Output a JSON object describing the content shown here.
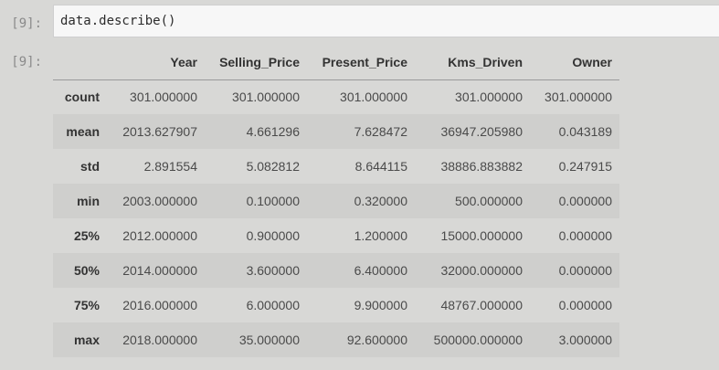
{
  "input": {
    "prompt": "[9]:",
    "code": "data.describe()"
  },
  "output": {
    "prompt": "[9]:",
    "columns": [
      "",
      "Year",
      "Selling_Price",
      "Present_Price",
      "Kms_Driven",
      "Owner"
    ],
    "rows": [
      {
        "label": "count",
        "values": [
          "301.000000",
          "301.000000",
          "301.000000",
          "301.000000",
          "301.000000"
        ]
      },
      {
        "label": "mean",
        "values": [
          "2013.627907",
          "4.661296",
          "7.628472",
          "36947.205980",
          "0.043189"
        ]
      },
      {
        "label": "std",
        "values": [
          "2.891554",
          "5.082812",
          "8.644115",
          "38886.883882",
          "0.247915"
        ]
      },
      {
        "label": "min",
        "values": [
          "2003.000000",
          "0.100000",
          "0.320000",
          "500.000000",
          "0.000000"
        ]
      },
      {
        "label": "25%",
        "values": [
          "2012.000000",
          "0.900000",
          "1.200000",
          "15000.000000",
          "0.000000"
        ]
      },
      {
        "label": "50%",
        "values": [
          "2014.000000",
          "3.600000",
          "6.400000",
          "32000.000000",
          "0.000000"
        ]
      },
      {
        "label": "75%",
        "values": [
          "2016.000000",
          "6.000000",
          "9.900000",
          "48767.000000",
          "0.000000"
        ]
      },
      {
        "label": "max",
        "values": [
          "2018.000000",
          "35.000000",
          "92.600000",
          "500000.000000",
          "3.000000"
        ]
      }
    ]
  }
}
